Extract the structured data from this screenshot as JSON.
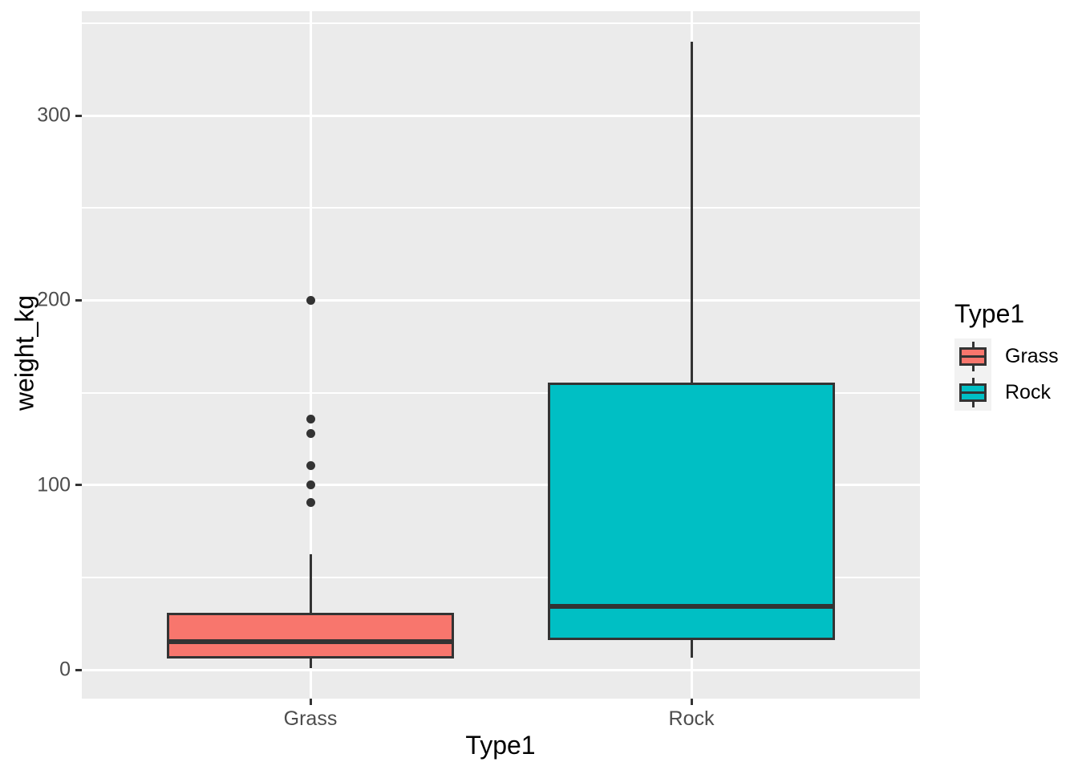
{
  "chart_data": {
    "type": "boxplot",
    "title": "",
    "xlabel": "Type1",
    "ylabel": "weight_kg",
    "categories": [
      "Grass",
      "Rock"
    ],
    "y_axis": {
      "ticks": [
        0,
        100,
        200,
        300
      ],
      "tick_labels": [
        "0",
        "100",
        "200",
        "300"
      ],
      "minor_ticks": [
        50,
        150,
        250,
        350
      ],
      "range": [
        -16,
        357
      ]
    },
    "series": [
      {
        "name": "Grass",
        "fill": "#F8766D",
        "lower_whisker": 1,
        "q1": 6,
        "median": 15,
        "q3": 31,
        "upper_whisker": 62.5,
        "outliers": [
          90.5,
          100,
          110.5,
          128,
          135.5,
          200
        ]
      },
      {
        "name": "Rock",
        "fill": "#00BFC4",
        "lower_whisker": 6.5,
        "q1": 16,
        "median": 34.5,
        "q3": 155.5,
        "upper_whisker": 340,
        "outliers": []
      }
    ],
    "legend": {
      "title": "Type1",
      "position": "right",
      "entries": [
        {
          "label": "Grass",
          "color": "#F8766D"
        },
        {
          "label": "Rock",
          "color": "#00BFC4"
        }
      ]
    },
    "style": {
      "panel_bg": "#EBEBEB",
      "grid_color": "#FFFFFF",
      "stroke": "#333333",
      "axis_text_color": "#4D4D4D",
      "title_color": "#000000",
      "legend_key_bg": "#F2F2F2"
    },
    "grid": true
  }
}
